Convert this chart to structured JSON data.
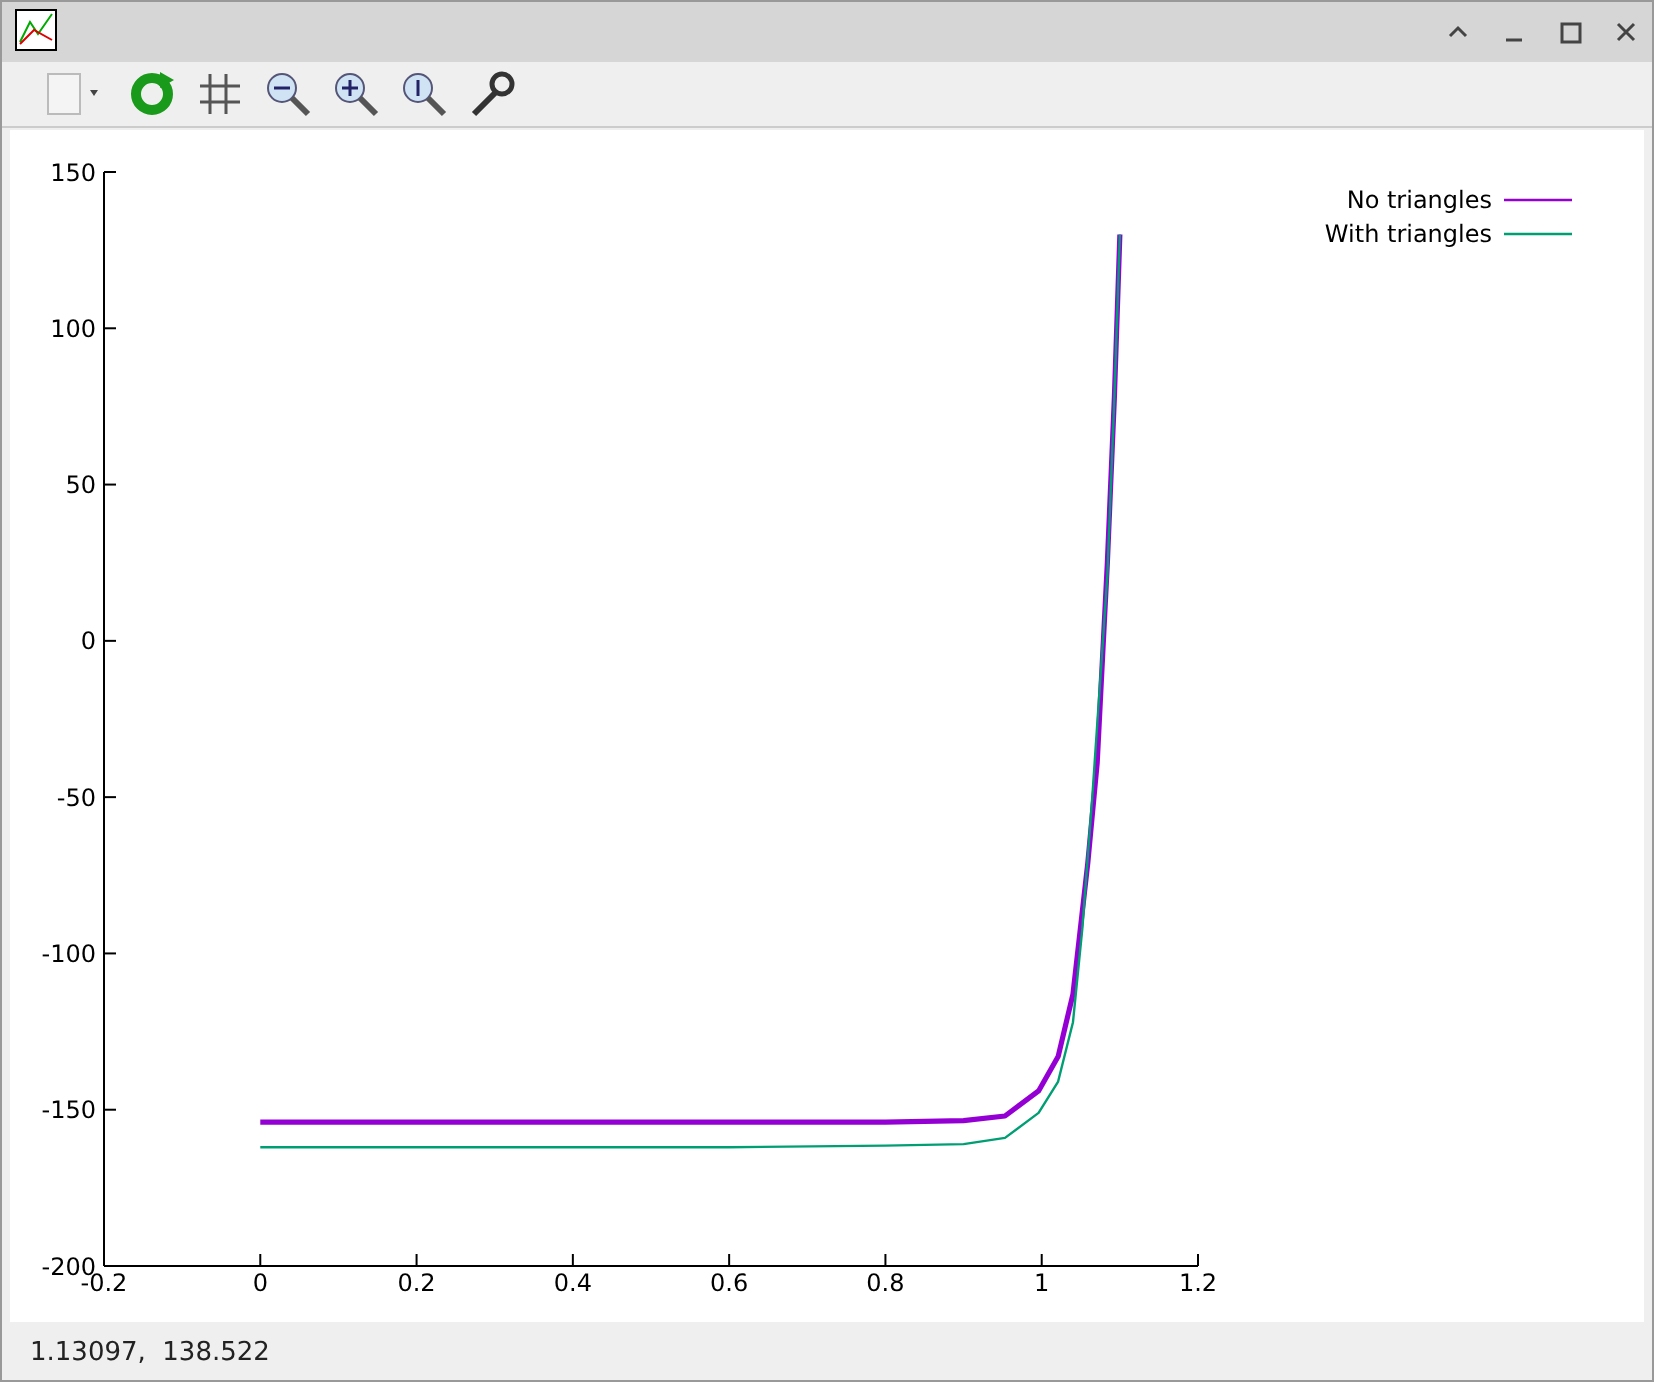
{
  "chart_data": {
    "type": "line",
    "xlim": [
      -0.2,
      1.2
    ],
    "xticks": [
      -0.2,
      0,
      0.2,
      0.4,
      0.6,
      0.8,
      1,
      1.2
    ],
    "ylim": [
      -200,
      150
    ],
    "yticks": [
      -200,
      -150,
      -100,
      -50,
      0,
      50,
      100,
      150
    ],
    "legend": "top right",
    "grid": false,
    "marker": "none",
    "line_style": "solid",
    "annotations": [
      "1.13097,  138.522"
    ],
    "series": [
      {
        "name": "No triangles",
        "color": "#9400d3",
        "x": [
          0,
          0.2,
          0.4,
          0.6,
          0.8,
          0.9,
          0.953,
          0.996,
          1.021,
          1.04,
          1.059,
          1.071,
          1.084,
          1.093,
          1.1
        ],
        "values": [
          -154,
          -154,
          -154,
          -154,
          -154,
          -153.5,
          -152,
          -144,
          -133,
          -113,
          -71,
          -39,
          25,
          78,
          130
        ]
      },
      {
        "name": "With triangles",
        "color": "#009e73",
        "x": [
          0,
          0.2,
          0.4,
          0.6,
          0.8,
          0.9,
          0.953,
          0.996,
          1.021,
          1.04,
          1.052,
          1.065,
          1.084,
          1.093,
          1.1
        ],
        "values": [
          -162,
          -162,
          -162,
          -162,
          -161.5,
          -161,
          -159,
          -151,
          -141,
          -122,
          -92,
          -49,
          21,
          78,
          130
        ]
      }
    ]
  }
}
